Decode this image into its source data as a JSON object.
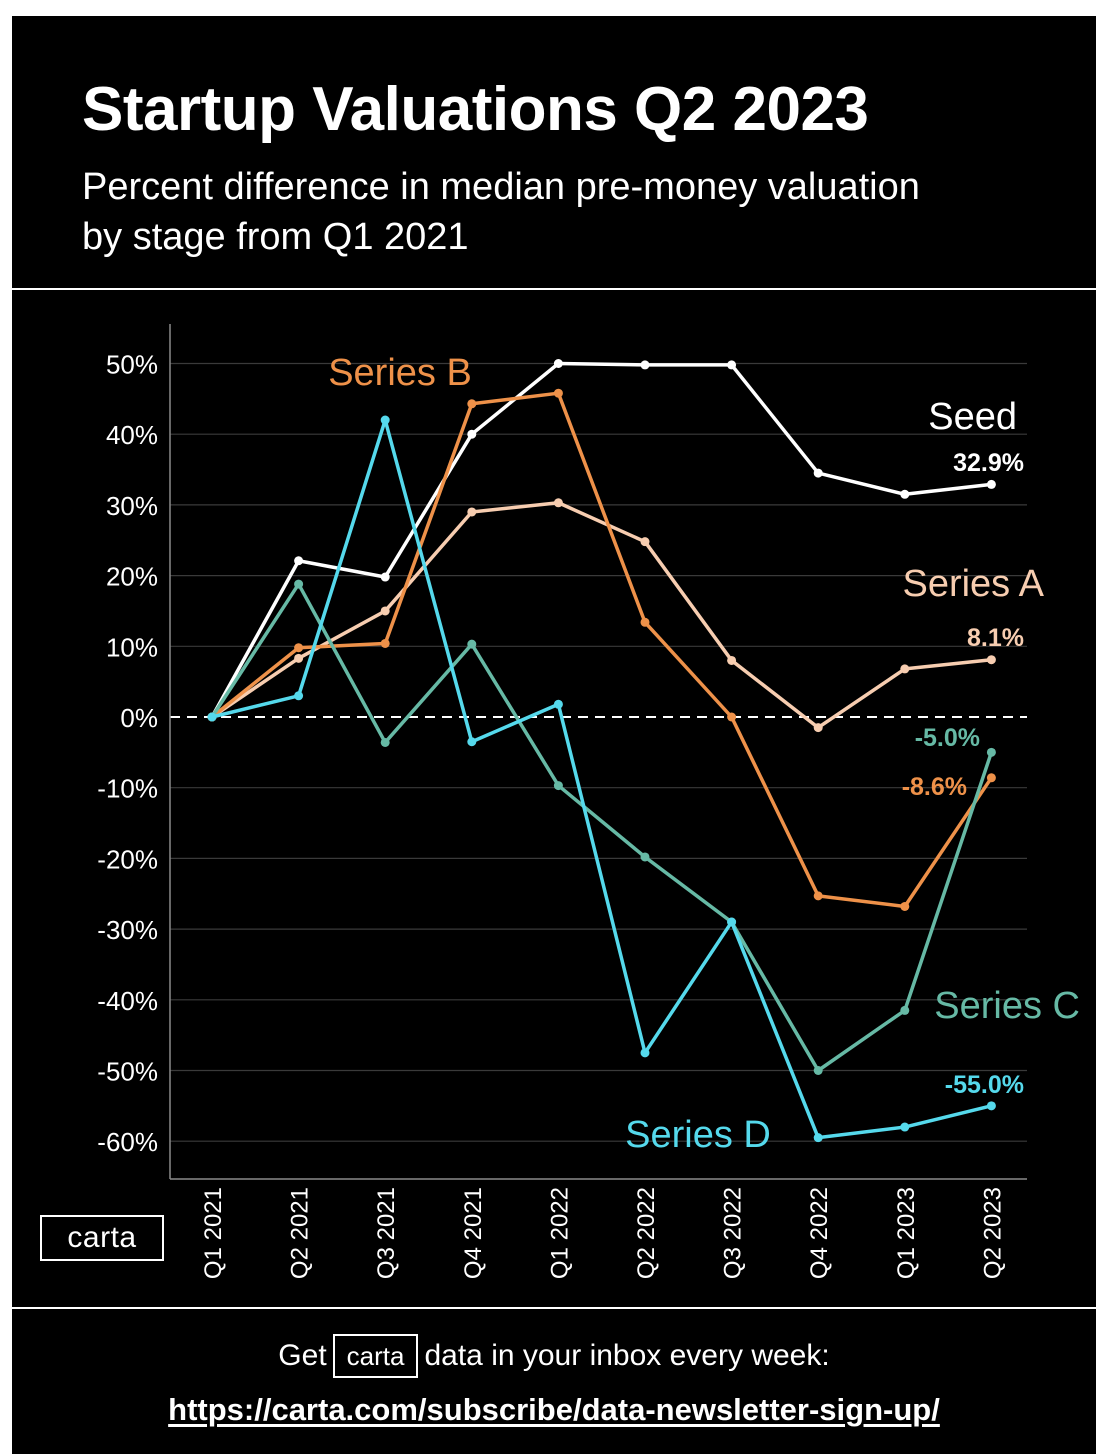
{
  "title": "Startup Valuations Q2 2023",
  "subtitle": "Percent difference in median pre-money valuation by stage from Q1 2021",
  "logo_text": "carta",
  "footer": {
    "prefix": "Get",
    "logo_text": "carta",
    "suffix": "data in your inbox every week:",
    "url": "https://carta.com/subscribe/data-newsletter-sign-up/"
  },
  "chart_data": {
    "type": "line",
    "title": "Startup Valuations Q2 2023",
    "subtitle": "Percent difference in median pre-money valuation by stage from Q1 2021",
    "categories": [
      "Q1 2021",
      "Q2 2021",
      "Q3 2021",
      "Q4 2021",
      "Q1 2022",
      "Q2 2022",
      "Q3 2022",
      "Q4 2022",
      "Q1 2023",
      "Q2 2023"
    ],
    "y_ticks": [
      "50%",
      "40%",
      "30%",
      "20%",
      "10%",
      "0%",
      "-10%",
      "-20%",
      "-30%",
      "-40%",
      "-50%",
      "-60%"
    ],
    "y_tick_values": [
      50,
      40,
      30,
      20,
      10,
      0,
      -10,
      -20,
      -30,
      -40,
      -50,
      -60
    ],
    "ylim": [
      -65,
      55
    ],
    "grid": "horizontal",
    "zero_line": "dashed",
    "series": [
      {
        "name": "Seed",
        "color": "#ffffff",
        "values": [
          0,
          22.1,
          19.8,
          40,
          50,
          49.8,
          49.8,
          34.5,
          31.5,
          32.9
        ],
        "end_label": "32.9%"
      },
      {
        "name": "Series A",
        "color": "#f7cdb0",
        "values": [
          0,
          8.3,
          15,
          29,
          30.3,
          24.8,
          8,
          -1.5,
          6.8,
          8.1
        ],
        "end_label": "8.1%"
      },
      {
        "name": "Series B",
        "color": "#ee9149",
        "values": [
          0,
          9.8,
          10.4,
          44.3,
          45.8,
          13.4,
          0,
          -25.3,
          -26.8,
          -8.6
        ],
        "end_label": "-8.6%"
      },
      {
        "name": "Series C",
        "color": "#66b9a5",
        "values": [
          0,
          18.8,
          -3.6,
          10.3,
          -9.7,
          -19.8,
          -29,
          -50,
          -41.5,
          -5.0
        ],
        "end_label": "-5.0%"
      },
      {
        "name": "Series D",
        "color": "#55d9ec",
        "values": [
          0,
          3,
          42,
          -3.5,
          1.8,
          -47.5,
          -29,
          -59.5,
          -58,
          -55.0
        ],
        "end_label": "-55.0%"
      }
    ]
  }
}
